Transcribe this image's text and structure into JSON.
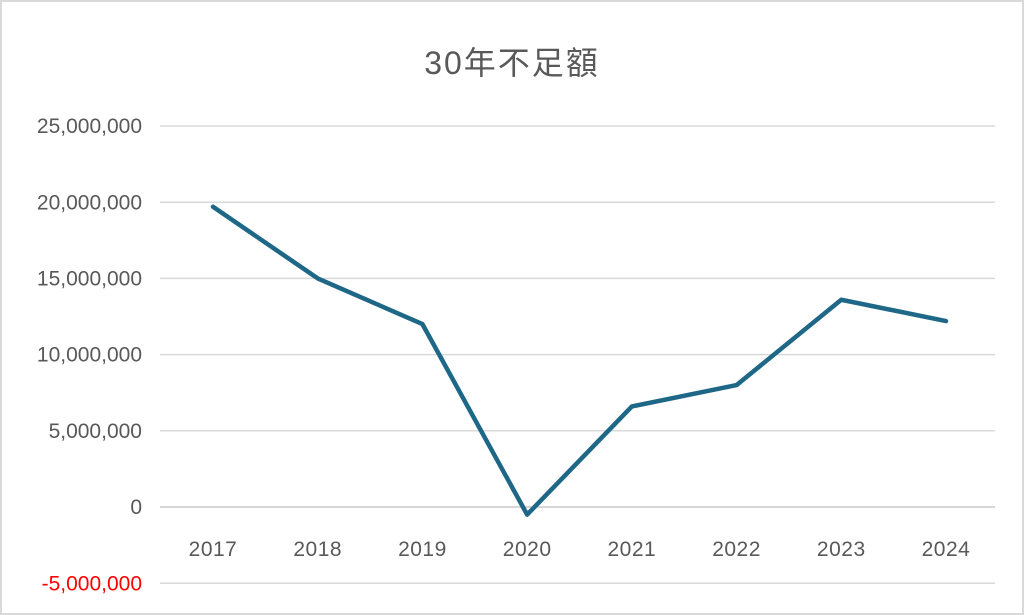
{
  "window": {
    "title": "30年不足額"
  },
  "chart_data": {
    "type": "line",
    "title": "30年不足額",
    "categories": [
      "2017",
      "2018",
      "2019",
      "2020",
      "2021",
      "2022",
      "2023",
      "2024"
    ],
    "values": [
      19700000,
      15000000,
      12000000,
      -500000,
      6600000,
      8000000,
      13600000,
      12200000
    ],
    "xlabel": "",
    "ylabel": "",
    "ylim": [
      -5000000,
      25000000
    ],
    "ytick_step": 5000000,
    "yticks": [
      {
        "value": 25000000,
        "label": "25,000,000"
      },
      {
        "value": 20000000,
        "label": "20,000,000"
      },
      {
        "value": 15000000,
        "label": "15,000,000"
      },
      {
        "value": 10000000,
        "label": "10,000,000"
      },
      {
        "value": 5000000,
        "label": "5,000,000"
      },
      {
        "value": 0,
        "label": "0"
      },
      {
        "value": -5000000,
        "label": "-5,000,000"
      }
    ],
    "grid": true,
    "legend_position": "none",
    "colors": {
      "line": "#1e6787",
      "gridline": "#d9d9d9",
      "zero_gridline": "#c9c9c9",
      "tick_text": "#595959",
      "negative_tick_text": "#ff0000",
      "title_text": "#595959",
      "frame_border": "#d9d9d9",
      "background": "#ffffff"
    }
  }
}
